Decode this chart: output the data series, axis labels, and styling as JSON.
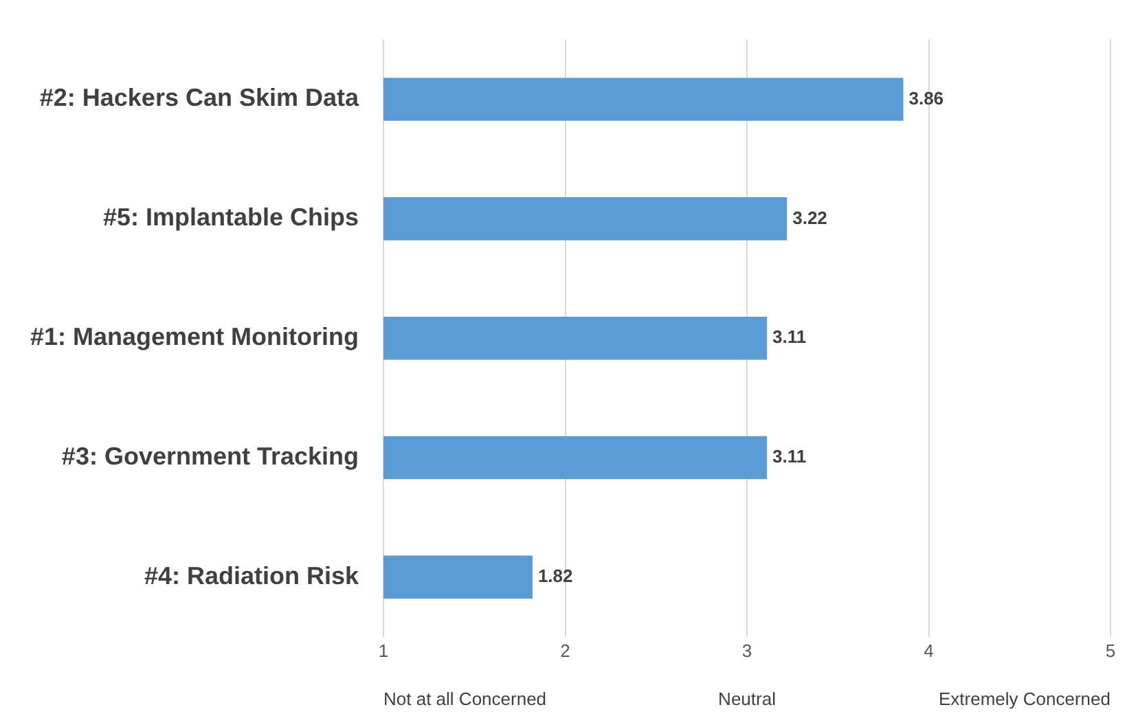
{
  "chart_data": {
    "type": "bar",
    "orientation": "horizontal",
    "categories": [
      "#2: Hackers Can Skim Data",
      "#5: Implantable Chips",
      "#1: Management Monitoring",
      "#3: Government Tracking",
      "#4: Radiation Risk"
    ],
    "values": [
      3.86,
      3.22,
      3.11,
      3.11,
      1.82
    ],
    "color": "#5b9bd5",
    "xlim": [
      1,
      5
    ],
    "xticks": [
      1,
      2,
      3,
      4,
      5
    ],
    "grid": "x",
    "legend": false,
    "data_labels": true,
    "annotations": [
      "Not at all Concerned",
      "Neutral",
      "Extremely Concerned"
    ]
  }
}
